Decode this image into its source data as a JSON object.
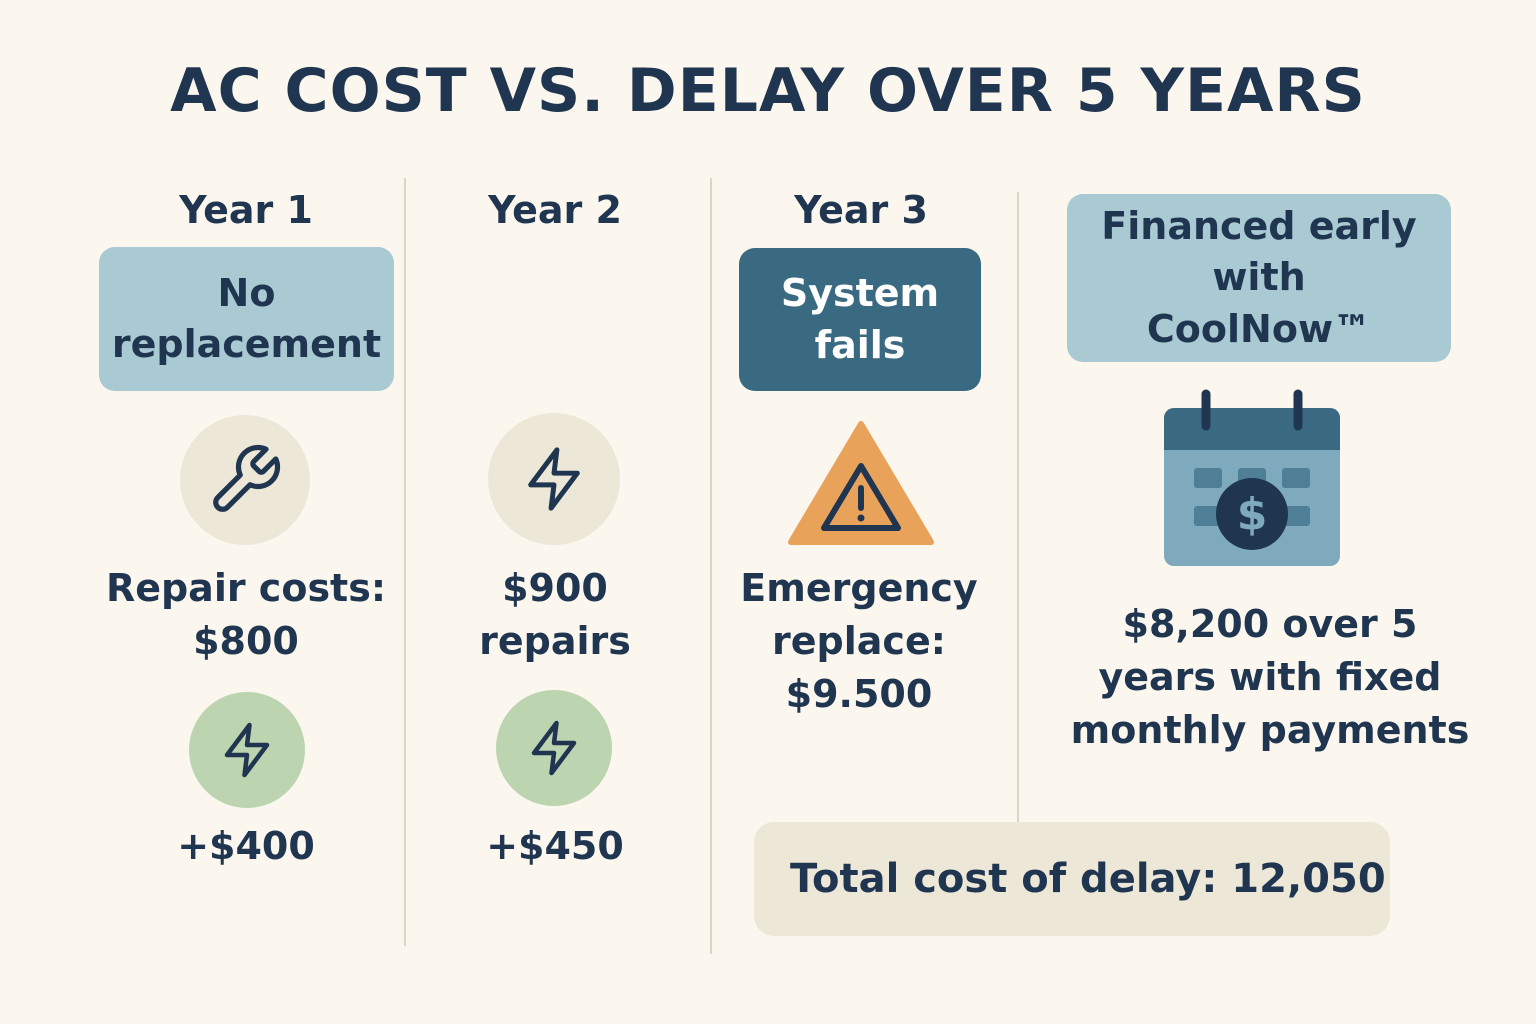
{
  "title": "AC COST VS. DELAY OVER 5 YEARS",
  "columns": [
    {
      "year": "Year 1",
      "status": "No replacement",
      "icon1": "wrench-icon",
      "cost_text": "Repair costs: $800",
      "icon2": "lightning-icon",
      "extra": "+$400"
    },
    {
      "year": "Year 2",
      "icon1": "lightning-icon",
      "cost_text": "$900 repairs",
      "icon2": "lightning-icon",
      "extra": "+$450"
    },
    {
      "year": "Year 3",
      "status": "System fails",
      "icon1": "warning-icon",
      "cost_text": "Emergency replace: $9.500"
    }
  ],
  "financing": {
    "label": "Financed early with CoolNow™",
    "icon": "calendar-dollar-icon",
    "description": "$8,200 over 5 years with fixed monthly payments"
  },
  "total": "Total cost of delay: 12,050",
  "colors": {
    "background": "#fbf7ee",
    "text": "#1f3550",
    "light_pill": "#a9c9d3",
    "dark_pill": "#3a6a82",
    "beige": "#ede7d8",
    "green": "#bcd4b0",
    "warning": "#e9a25a"
  }
}
